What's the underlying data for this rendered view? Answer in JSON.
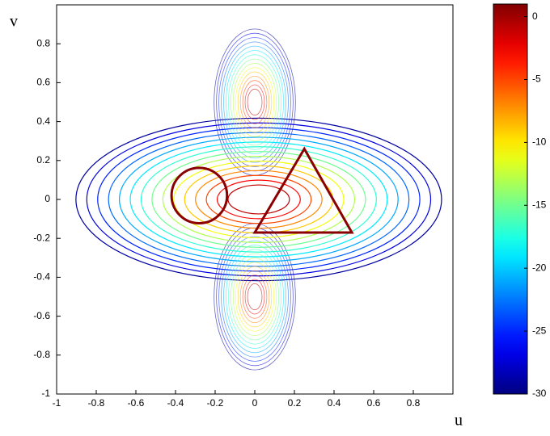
{
  "chart_data": {
    "type": "contour",
    "x_label": "u",
    "y_label": "v",
    "xlim": [
      -1,
      1
    ],
    "ylim": [
      -1,
      1
    ],
    "xticks": [
      -1,
      -0.8,
      -0.6,
      -0.4,
      -0.2,
      0,
      0.2,
      0.4,
      0.6,
      0.8
    ],
    "yticks": [
      -1,
      -0.8,
      -0.6,
      -0.4,
      -0.2,
      0,
      0.2,
      0.4,
      0.6,
      0.8
    ],
    "colormap": "jet",
    "clim": [
      -30,
      1
    ],
    "cticks": [
      -30,
      -25,
      -20,
      -15,
      -10,
      -5,
      0
    ],
    "levels": [
      -29,
      -27,
      -25,
      -23,
      -21,
      -19,
      -17,
      -15,
      -13,
      -11,
      -9,
      -7,
      -5,
      -3,
      -1
    ],
    "shape_color": "#8b0000",
    "circle": {
      "center": [
        -0.28,
        0.02
      ],
      "radius": 0.14
    },
    "triangle": {
      "u": [
        0,
        0.25,
        0.49
      ],
      "v": [
        -0.17,
        0.26,
        -0.17
      ]
    }
  }
}
